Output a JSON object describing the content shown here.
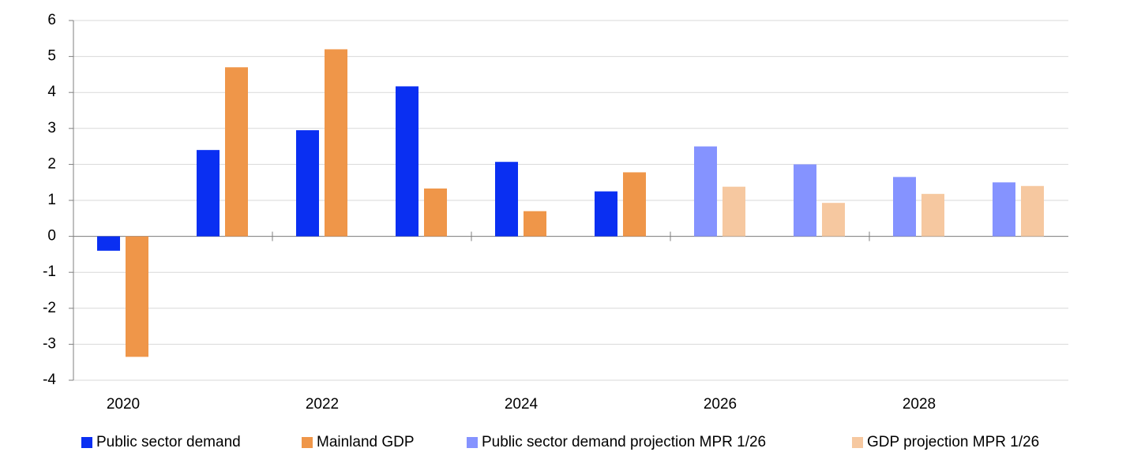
{
  "chart_data": {
    "type": "bar",
    "categories": [
      "2020",
      null,
      "2022",
      null,
      "2024",
      null,
      "2026",
      null,
      "2028",
      null
    ],
    "series": [
      {
        "name": "Public sector demand",
        "color": "#0a2ff2",
        "values": [
          -0.4,
          2.4,
          2.95,
          4.17,
          2.07,
          1.25,
          null,
          null,
          null,
          null
        ]
      },
      {
        "name": "Mainland GDP",
        "color": "#ef9649",
        "values": [
          -3.35,
          4.7,
          5.2,
          1.33,
          0.7,
          1.78,
          null,
          null,
          null,
          null
        ]
      },
      {
        "name": "Public sector demand projection MPR 1/26",
        "color": "#8593ff",
        "values": [
          null,
          null,
          null,
          null,
          null,
          null,
          2.5,
          2.0,
          1.65,
          1.5
        ]
      },
      {
        "name": "GDP projection MPR 1/26",
        "color": "#f6c8a0",
        "values": [
          null,
          null,
          null,
          null,
          null,
          null,
          1.38,
          0.93,
          1.18,
          1.4
        ]
      }
    ],
    "ylim": [
      -4,
      6
    ],
    "yticks": [
      -4,
      -3,
      -2,
      -1,
      0,
      1,
      2,
      3,
      4,
      5,
      6
    ],
    "grid": true,
    "legend": "bottom"
  }
}
